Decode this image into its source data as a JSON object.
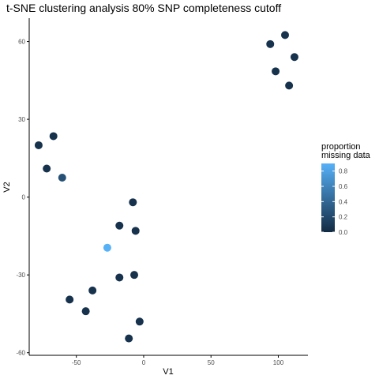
{
  "chart_data": {
    "type": "scatter",
    "title": "t-SNE clustering analysis 80% SNP completeness cutoff",
    "xlabel": "V1",
    "ylabel": "V2",
    "xlim": [
      -85,
      122
    ],
    "ylim": [
      -61,
      69
    ],
    "xticks": [
      -50,
      0,
      50,
      100
    ],
    "yticks": [
      -60,
      -30,
      0,
      30,
      60
    ],
    "xtick_labels": [
      "-50",
      "0",
      "50",
      "100"
    ],
    "ytick_labels": [
      "-60",
      "-30",
      "0",
      "30",
      "60"
    ],
    "grid": false,
    "legend": {
      "title_lines": [
        "proportion",
        "missing data"
      ],
      "position": "right",
      "range": [
        0,
        0.9
      ],
      "ticks": [
        0.0,
        0.2,
        0.4,
        0.6,
        0.8
      ],
      "tick_labels": [
        "0.0",
        "0.2",
        "0.4",
        "0.6",
        "0.8"
      ],
      "low_color": "#132b43",
      "high_color": "#56b1f7"
    },
    "points": [
      {
        "x": 105,
        "y": 62.5,
        "c": 0.05
      },
      {
        "x": 94,
        "y": 59,
        "c": 0.05
      },
      {
        "x": 112,
        "y": 54,
        "c": 0.05
      },
      {
        "x": 98,
        "y": 48.5,
        "c": 0.05
      },
      {
        "x": 108,
        "y": 43,
        "c": 0.05
      },
      {
        "x": -67,
        "y": 23.5,
        "c": 0.05
      },
      {
        "x": -78,
        "y": 20,
        "c": 0.05
      },
      {
        "x": -72,
        "y": 11,
        "c": 0.05
      },
      {
        "x": -60.5,
        "y": 7.5,
        "c": 0.25
      },
      {
        "x": -8,
        "y": -2,
        "c": 0.05
      },
      {
        "x": -18,
        "y": -11,
        "c": 0.05
      },
      {
        "x": -6,
        "y": -13,
        "c": 0.05
      },
      {
        "x": -27,
        "y": -19.5,
        "c": 0.9
      },
      {
        "x": -7,
        "y": -30,
        "c": 0.05
      },
      {
        "x": -18,
        "y": -31,
        "c": 0.05
      },
      {
        "x": -38,
        "y": -36,
        "c": 0.05
      },
      {
        "x": -55,
        "y": -39.5,
        "c": 0.05
      },
      {
        "x": -43,
        "y": -44,
        "c": 0.05
      },
      {
        "x": -3,
        "y": -48,
        "c": 0.05
      },
      {
        "x": -11,
        "y": -54.5,
        "c": 0.05
      }
    ]
  }
}
